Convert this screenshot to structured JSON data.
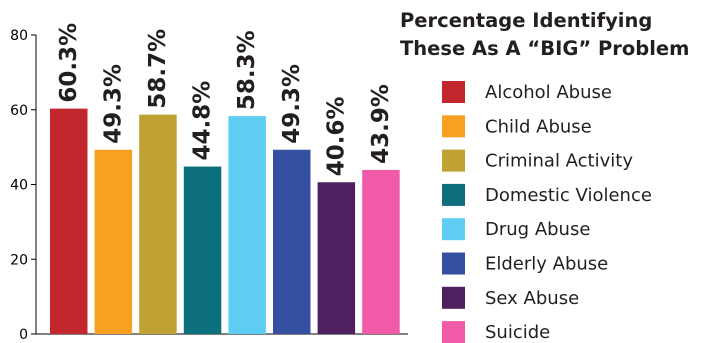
{
  "chart_data": {
    "type": "bar",
    "title_lines": [
      "Percentage Identifying",
      "These As A “BIG” Problem"
    ],
    "xlabel": "",
    "ylabel": "",
    "ylim": [
      0,
      80
    ],
    "yticks": [
      0,
      20,
      40,
      60,
      80
    ],
    "grid": false,
    "legend_position": "right",
    "categories": [
      "Alcohol Abuse",
      "Child Abuse",
      "Criminal Activity",
      "Domestic Violence",
      "Drug Abuse",
      "Elderly Abuse",
      "Sex Abuse",
      "Suicide"
    ],
    "values": [
      60.3,
      49.3,
      58.7,
      44.8,
      58.3,
      49.3,
      40.6,
      43.9
    ],
    "data_labels": [
      "60.3%",
      "49.3%",
      "58.7%",
      "44.8%",
      "58.3%",
      "49.3%",
      "40.6%",
      "43.9%"
    ],
    "colors": [
      "#c1272d",
      "#f7a021",
      "#bfa233",
      "#0e6f7c",
      "#5ecdf3",
      "#3550a3",
      "#4f1f5f",
      "#f05aa6"
    ]
  }
}
